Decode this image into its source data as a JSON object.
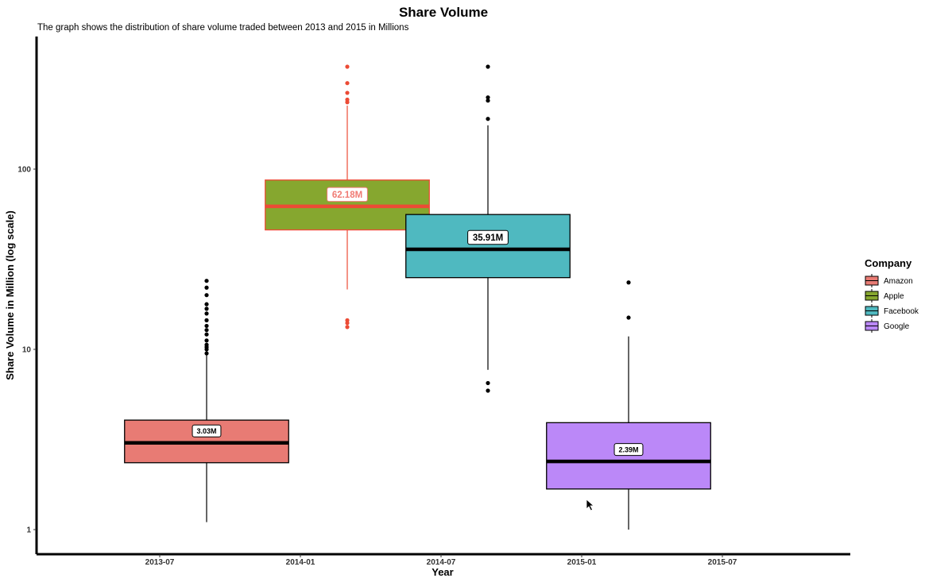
{
  "chart_data": {
    "type": "box",
    "title": "Share Volume",
    "subtitle": "The graph shows the distribution of share volume traded between 2013 and 2015 in Millions",
    "xlabel": "Year",
    "ylabel": "Share Volume in Million (log scale)",
    "x_ticks": [
      "2013-07",
      "2014-01",
      "2014-07",
      "2015-01",
      "2015-07"
    ],
    "y_scale": "log10",
    "y_ticks": [
      1,
      10,
      100
    ],
    "ylim": [
      0.8,
      430
    ],
    "legend": {
      "title": "Company",
      "position": "right"
    },
    "series": [
      {
        "name": "Amazon",
        "color": "#e87b74",
        "line_color": "#000000",
        "median_label_color": "#000000",
        "x_center": "2013-09",
        "width_months": 7,
        "whisker_low": 1.1,
        "q1": 2.35,
        "median": 3.03,
        "q3": 4.05,
        "whisker_high": 9.3,
        "outliers": [
          9.5,
          10.0,
          10.3,
          10.6,
          11.2,
          12.1,
          12.8,
          13.5,
          14.5,
          15.8,
          16.8,
          17.8,
          20.0,
          22.0,
          24.0
        ],
        "median_label": "3.03M"
      },
      {
        "name": "Apple",
        "color": "#86a72f",
        "line_color": "#ec4b35",
        "median_label_color": "#f07b74",
        "x_center": "2014-03",
        "width_months": 7,
        "whisker_low": 21.5,
        "q1": 46.0,
        "median": 62.18,
        "q3": 87.0,
        "whisker_high": 225,
        "outliers": [
          13.3,
          14.0,
          14.5,
          235,
          243,
          265,
          300,
          370
        ],
        "median_label": "62.18M"
      },
      {
        "name": "Facebook",
        "color": "#4fb9c0",
        "line_color": "#000000",
        "median_label_color": "#000000",
        "x_center": "2014-09",
        "width_months": 7,
        "whisker_low": 7.7,
        "q1": 25.0,
        "median": 35.91,
        "q3": 56.0,
        "whisker_high": 175,
        "outliers": [
          5.9,
          6.5,
          190,
          240,
          250,
          370
        ],
        "median_label": "35.91M"
      },
      {
        "name": "Google",
        "color": "#bb88f8",
        "line_color": "#000000",
        "median_label_color": "#000000",
        "x_center": "2015-03",
        "width_months": 7,
        "whisker_low": 1.0,
        "q1": 1.68,
        "median": 2.39,
        "q3": 3.92,
        "whisker_high": 11.8,
        "outliers": [
          15.0,
          23.5
        ],
        "median_label": "2.39M"
      }
    ]
  }
}
